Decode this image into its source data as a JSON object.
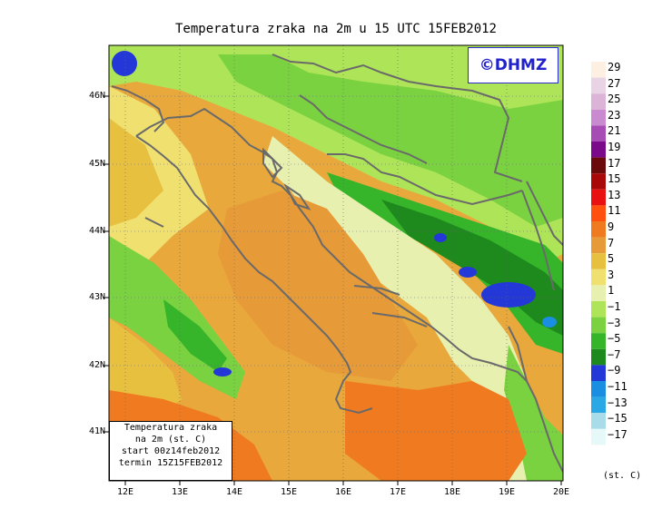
{
  "title": "Temperatura zraka na 2m u 15 UTC 15FEB2012",
  "logo": "©DHMZ",
  "infobox": {
    "line1": "Temperatura zraka",
    "line2": "na 2m (st. C)",
    "line3": "start 00z14feb2012",
    "line4": "termin 15Z15FEB2012"
  },
  "lat_labels": [
    "46N",
    "45N",
    "44N",
    "43N",
    "42N",
    "41N"
  ],
  "lon_labels": [
    "12E",
    "13E",
    "14E",
    "15E",
    "16E",
    "17E",
    "18E",
    "19E",
    "20E"
  ],
  "colorbar": {
    "labels": [
      "29",
      "27",
      "25",
      "23",
      "21",
      "19",
      "17",
      "15",
      "13",
      "11",
      "9",
      "7",
      "5",
      "3",
      "1",
      "−1",
      "−3",
      "−5",
      "−7",
      "−9",
      "−11",
      "−13",
      "−15",
      "−17"
    ],
    "colors": [
      "#fdf0e2",
      "#e8d4e4",
      "#dcb4d8",
      "#c98ad0",
      "#a64cb4",
      "#7a0a8a",
      "#6a0a0a",
      "#a80808",
      "#e81010",
      "#ff5010",
      "#f07a20",
      "#e69a38",
      "#e8c040",
      "#f0e070",
      "#e8f0b0",
      "#aee458",
      "#7ad240",
      "#36b42a",
      "#1e8a1e",
      "#2438d8",
      "#1a8ee0",
      "#2aa8e6",
      "#a8dce8",
      "#e6f8f8"
    ],
    "unit": "(st. C)"
  }
}
